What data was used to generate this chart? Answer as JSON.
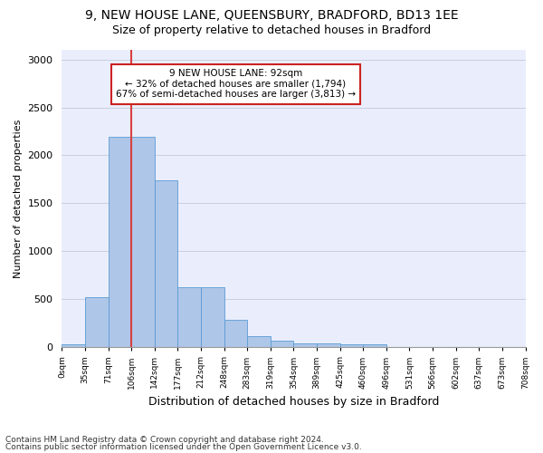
{
  "title1": "9, NEW HOUSE LANE, QUEENSBURY, BRADFORD, BD13 1EE",
  "title2": "Size of property relative to detached houses in Bradford",
  "xlabel": "Distribution of detached houses by size in Bradford",
  "ylabel": "Number of detached properties",
  "footer1": "Contains HM Land Registry data © Crown copyright and database right 2024.",
  "footer2": "Contains public sector information licensed under the Open Government Licence v3.0.",
  "bar_values": [
    30,
    520,
    2190,
    2190,
    1740,
    630,
    630,
    290,
    120,
    65,
    40,
    40,
    30,
    30,
    0,
    0,
    0,
    0,
    0,
    0
  ],
  "bin_labels": [
    "0sqm",
    "35sqm",
    "71sqm",
    "106sqm",
    "142sqm",
    "177sqm",
    "212sqm",
    "248sqm",
    "283sqm",
    "319sqm",
    "354sqm",
    "389sqm",
    "425sqm",
    "460sqm",
    "496sqm",
    "531sqm",
    "566sqm",
    "602sqm",
    "637sqm",
    "673sqm",
    "708sqm"
  ],
  "bar_color": "#aec6e8",
  "bar_edge_color": "#5b9bd5",
  "highlight_bar_index": 2,
  "highlight_color": "#d94040",
  "annotation_text": "9 NEW HOUSE LANE: 92sqm\n← 32% of detached houses are smaller (1,794)\n67% of semi-detached houses are larger (3,813) →",
  "annotation_box_color": "#ffffff",
  "annotation_box_edge": "#cc2222",
  "ylim": [
    0,
    3100
  ],
  "yticks": [
    0,
    500,
    1000,
    1500,
    2000,
    2500,
    3000
  ],
  "grid_color": "#c8cfe0",
  "bg_color": "#eaeefc",
  "title1_fontsize": 10,
  "title2_fontsize": 9,
  "xlabel_fontsize": 9,
  "ylabel_fontsize": 8,
  "footer_fontsize": 6.5
}
